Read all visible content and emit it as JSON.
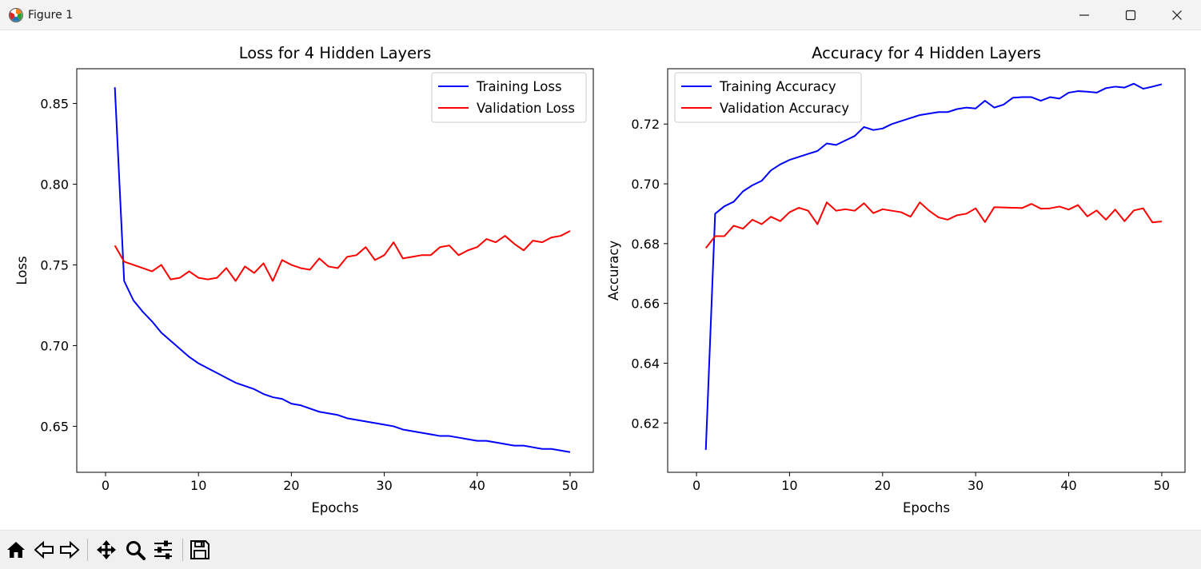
{
  "window": {
    "title": "Figure 1",
    "icons": [
      "matplotlib-logo-icon",
      "minimize-icon",
      "maximize-icon",
      "close-icon"
    ]
  },
  "toolbar": {
    "buttons": [
      {
        "name": "home",
        "icon": "home-icon"
      },
      {
        "name": "back",
        "icon": "back-arrow-icon"
      },
      {
        "name": "forward",
        "icon": "forward-arrow-icon"
      },
      {
        "name": "pan",
        "icon": "move-arrows-icon"
      },
      {
        "name": "zoom",
        "icon": "magnifier-icon"
      },
      {
        "name": "configure-subplots",
        "icon": "sliders-icon"
      },
      {
        "name": "save",
        "icon": "floppy-disk-icon"
      }
    ]
  },
  "chart_data": [
    {
      "type": "line",
      "title": "Loss for 4 Hidden Layers",
      "xlabel": "Epochs",
      "ylabel": "Loss",
      "xlim": [
        -3.1,
        52.5
      ],
      "ylim": [
        0.6215,
        0.8715
      ],
      "xticks": [
        0,
        10,
        20,
        30,
        40,
        50
      ],
      "yticks": [
        0.65,
        0.7,
        0.75,
        0.8,
        0.85
      ],
      "ytick_labels": [
        "0.65",
        "0.70",
        "0.75",
        "0.80",
        "0.85"
      ],
      "legend": "top-right",
      "grid": false,
      "x": [
        1,
        2,
        3,
        4,
        5,
        6,
        7,
        8,
        9,
        10,
        11,
        12,
        13,
        14,
        15,
        16,
        17,
        18,
        19,
        20,
        21,
        22,
        23,
        24,
        25,
        26,
        27,
        28,
        29,
        30,
        31,
        32,
        33,
        34,
        35,
        36,
        37,
        38,
        39,
        40,
        41,
        42,
        43,
        44,
        45,
        46,
        47,
        48,
        49,
        50
      ],
      "series": [
        {
          "name": "Training Loss",
          "color": "#0000ff",
          "values": [
            0.86,
            0.74,
            0.728,
            0.721,
            0.715,
            0.708,
            0.703,
            0.698,
            0.693,
            0.689,
            0.686,
            0.683,
            0.68,
            0.677,
            0.675,
            0.673,
            0.67,
            0.668,
            0.667,
            0.664,
            0.663,
            0.661,
            0.659,
            0.658,
            0.657,
            0.655,
            0.654,
            0.653,
            0.652,
            0.651,
            0.65,
            0.648,
            0.647,
            0.646,
            0.645,
            0.644,
            0.644,
            0.643,
            0.642,
            0.641,
            0.641,
            0.64,
            0.639,
            0.638,
            0.638,
            0.637,
            0.636,
            0.636,
            0.635,
            0.634
          ]
        },
        {
          "name": "Validation Loss",
          "color": "#ff0000",
          "values": [
            0.762,
            0.752,
            0.75,
            0.748,
            0.746,
            0.75,
            0.741,
            0.742,
            0.746,
            0.742,
            0.741,
            0.742,
            0.748,
            0.74,
            0.749,
            0.745,
            0.751,
            0.74,
            0.753,
            0.75,
            0.748,
            0.747,
            0.754,
            0.749,
            0.748,
            0.755,
            0.756,
            0.761,
            0.753,
            0.756,
            0.764,
            0.754,
            0.755,
            0.756,
            0.756,
            0.761,
            0.762,
            0.756,
            0.759,
            0.761,
            0.766,
            0.764,
            0.768,
            0.763,
            0.759,
            0.765,
            0.764,
            0.767,
            0.768,
            0.771
          ]
        }
      ]
    },
    {
      "type": "line",
      "title": "Accuracy for 4 Hidden Layers",
      "xlabel": "Epochs",
      "ylabel": "Accuracy",
      "xlim": [
        -3.1,
        52.5
      ],
      "ylim": [
        0.6035,
        0.7385
      ],
      "xticks": [
        0,
        10,
        20,
        30,
        40,
        50
      ],
      "yticks": [
        0.62,
        0.64,
        0.66,
        0.68,
        0.7,
        0.72
      ],
      "ytick_labels": [
        "0.62",
        "0.64",
        "0.66",
        "0.68",
        "0.70",
        "0.72"
      ],
      "legend": "top-left",
      "grid": false,
      "x": [
        1,
        2,
        3,
        4,
        5,
        6,
        7,
        8,
        9,
        10,
        11,
        12,
        13,
        14,
        15,
        16,
        17,
        18,
        19,
        20,
        21,
        22,
        23,
        24,
        25,
        26,
        27,
        28,
        29,
        30,
        31,
        32,
        33,
        34,
        35,
        36,
        37,
        38,
        39,
        40,
        41,
        42,
        43,
        44,
        45,
        46,
        47,
        48,
        49,
        50
      ],
      "series": [
        {
          "name": "Training Accuracy",
          "color": "#0000ff",
          "values": [
            0.611,
            0.69,
            0.6925,
            0.694,
            0.6975,
            0.6995,
            0.701,
            0.7045,
            0.7065,
            0.708,
            0.709,
            0.71,
            0.711,
            0.7135,
            0.713,
            0.7145,
            0.716,
            0.719,
            0.718,
            0.7185,
            0.72,
            0.721,
            0.722,
            0.723,
            0.7235,
            0.724,
            0.724,
            0.725,
            0.7255,
            0.7252,
            0.7278,
            0.7255,
            0.7265,
            0.7288,
            0.729,
            0.729,
            0.7278,
            0.729,
            0.7285,
            0.7305,
            0.731,
            0.7308,
            0.7305,
            0.732,
            0.7325,
            0.7322,
            0.7335,
            0.7318,
            0.7325,
            0.7333
          ]
        },
        {
          "name": "Validation Accuracy",
          "color": "#ff0000",
          "values": [
            0.6785,
            0.6825,
            0.6825,
            0.686,
            0.685,
            0.688,
            0.6865,
            0.689,
            0.6875,
            0.6905,
            0.692,
            0.691,
            0.6865,
            0.6938,
            0.691,
            0.6915,
            0.691,
            0.6935,
            0.6902,
            0.6915,
            0.691,
            0.6905,
            0.689,
            0.6938,
            0.691,
            0.6888,
            0.688,
            0.6895,
            0.69,
            0.6918,
            0.6872,
            0.6922,
            0.6921,
            0.692,
            0.6919,
            0.6933,
            0.6917,
            0.6918,
            0.6924,
            0.6914,
            0.6929,
            0.6891,
            0.6911,
            0.688,
            0.6914,
            0.6875,
            0.6911,
            0.6918,
            0.6871,
            0.6874
          ]
        }
      ]
    }
  ]
}
